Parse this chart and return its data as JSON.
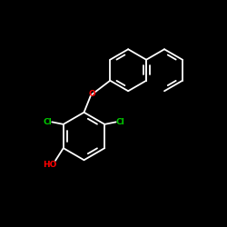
{
  "bg_color": "#000000",
  "bond_color": "#ffffff",
  "atom_colors": {
    "O": "#ff0000",
    "Cl": "#00cc00",
    "HO": "#ff0000",
    "C": "#ffffff"
  },
  "font_size_atom": 6.5,
  "linewidth": 1.3,
  "figure_size": [
    2.5,
    2.5
  ],
  "dpi": 100,
  "xlim": [
    0,
    10
  ],
  "ylim": [
    0,
    10
  ]
}
